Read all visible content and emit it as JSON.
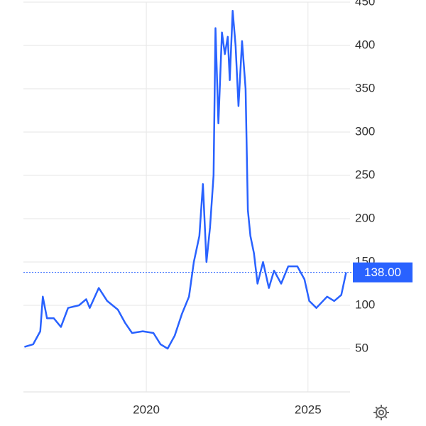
{
  "chart_data": {
    "type": "line",
    "x": [
      2016.23,
      2016.5,
      2016.72,
      2016.8,
      2016.93,
      2017.14,
      2017.36,
      2017.58,
      2017.92,
      2018.14,
      2018.25,
      2018.53,
      2018.79,
      2019.12,
      2019.34,
      2019.56,
      2019.89,
      2020.22,
      2020.44,
      2020.66,
      2020.88,
      2021.1,
      2021.32,
      2021.47,
      2021.64,
      2021.75,
      2021.86,
      2021.97,
      2022.08,
      2022.14,
      2022.23,
      2022.34,
      2022.43,
      2022.52,
      2022.58,
      2022.67,
      2022.76,
      2022.85,
      2022.96,
      2023.07,
      2023.14,
      2023.22,
      2023.33,
      2023.44,
      2023.61,
      2023.79,
      2023.95,
      2024.17,
      2024.39,
      2024.67,
      2024.89,
      2025.04,
      2025.26,
      2025.59,
      2025.81,
      2026.03,
      2026.18
    ],
    "series": [
      {
        "color": "#2962ff",
        "values": [
          52,
          55,
          70,
          110,
          85,
          85,
          75,
          97,
          100,
          107,
          97,
          120,
          105,
          95,
          80,
          68,
          70,
          68,
          55,
          50,
          65,
          90,
          110,
          150,
          180,
          240,
          150,
          190,
          250,
          420,
          310,
          415,
          390,
          410,
          360,
          440,
          400,
          330,
          405,
          350,
          210,
          180,
          160,
          125,
          150,
          120,
          140,
          125,
          145,
          145,
          130,
          105,
          97,
          110,
          105,
          112,
          138
        ]
      }
    ],
    "last_value": {
      "value": 138,
      "label": "138.00"
    },
    "xlim": [
      2016.2,
      2026.3
    ],
    "xticks": [
      2020,
      2025
    ],
    "ylim": [
      0,
      450
    ],
    "yticks": [
      50,
      100,
      150,
      200,
      250,
      300,
      350,
      400,
      450
    ],
    "grid": true
  }
}
